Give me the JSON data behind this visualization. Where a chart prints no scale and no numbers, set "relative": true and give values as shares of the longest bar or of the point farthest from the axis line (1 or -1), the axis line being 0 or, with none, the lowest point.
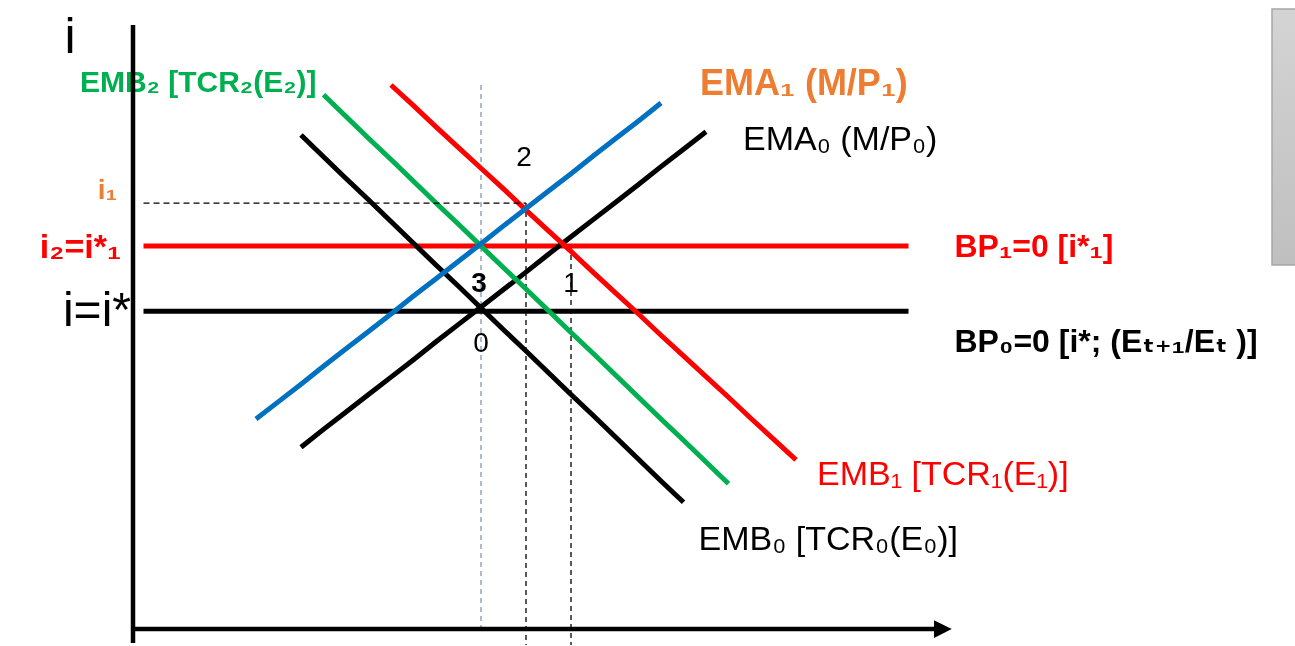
{
  "chart_data": {
    "type": "line",
    "relative": true,
    "ylabel": "i",
    "categories": [
      null,
      null,
      null,
      null,
      null,
      null,
      null,
      null,
      null,
      null,
      null,
      null,
      null,
      null,
      null,
      null,
      null,
      null,
      null,
      null,
      null,
      null,
      null,
      null,
      null,
      null,
      null,
      null,
      null,
      null,
      null,
      null,
      null,
      null,
      null
    ],
    "series": [
      {
        "name": "BP₀=0 [i*; (Eₜ₊₁/Eₜ )]",
        "color": "#000000",
        "values": [
          0.584,
          0.584,
          0.584,
          0.584,
          0.584,
          0.584,
          0.584,
          0.584,
          0.584,
          0.584,
          0.584,
          0.584,
          0.584,
          0.584,
          0.584,
          0.584,
          0.584,
          0.584,
          0.584,
          0.584,
          0.584,
          0.584,
          0.584,
          0.584,
          0.584,
          0.584,
          0.584,
          0.584,
          0.584,
          0.584,
          0.584,
          0.584,
          0.584,
          0.584,
          0.584
        ]
      },
      {
        "name": "BP₁=0 [i*₁]",
        "color": "#ff0000",
        "values": [
          0.704,
          0.704,
          0.704,
          0.704,
          0.704,
          0.704,
          0.704,
          0.704,
          0.704,
          0.704,
          0.704,
          0.704,
          0.704,
          0.704,
          0.704,
          0.704,
          0.704,
          0.704,
          0.704,
          0.704,
          0.704,
          0.704,
          0.704,
          0.704,
          0.704,
          0.704,
          0.704,
          0.704,
          0.704,
          0.704,
          0.704,
          0.704,
          0.704,
          0.704,
          0.704
        ]
      },
      {
        "name": "EMB₀ [TCR₀(E₀)]",
        "color": "#000000",
        "values": [
          null,
          null,
          null,
          null,
          null,
          null,
          null,
          0.908,
          0.868,
          0.828,
          0.789,
          0.749,
          0.709,
          0.669,
          0.63,
          0.59,
          0.55,
          0.511,
          0.471,
          0.431,
          0.392,
          0.352,
          0.312,
          0.272,
          0.233,
          null,
          null,
          null,
          null,
          null,
          null,
          null,
          null,
          null,
          null
        ]
      },
      {
        "name": "EMA₀ (M/P₀)",
        "color": "#000000",
        "values": [
          null,
          null,
          null,
          null,
          null,
          null,
          null,
          0.334,
          0.367,
          0.399,
          0.431,
          0.463,
          0.495,
          0.528,
          0.56,
          0.592,
          0.624,
          0.656,
          0.689,
          0.721,
          0.753,
          0.785,
          0.817,
          0.85,
          0.882,
          0.914,
          null,
          null,
          null,
          null,
          null,
          null,
          null,
          null,
          null
        ]
      },
      {
        "name": "EMB₂ [TCR₂(E₂)]",
        "color": "#00b050",
        "values": [
          null,
          null,
          null,
          null,
          null,
          null,
          null,
          null,
          0.982,
          0.942,
          0.902,
          0.863,
          0.823,
          0.783,
          0.744,
          0.704,
          0.664,
          0.625,
          0.585,
          0.545,
          0.506,
          0.466,
          0.426,
          0.386,
          0.347,
          0.307,
          0.267,
          null,
          null,
          null,
          null,
          null,
          null,
          null,
          null
        ]
      },
      {
        "name": "EMB₁ [TCR₁(E₁)]",
        "color": "#ff0000",
        "values": [
          null,
          null,
          null,
          null,
          null,
          null,
          null,
          null,
          null,
          null,
          null,
          1,
          0.962,
          0.923,
          0.885,
          0.847,
          0.809,
          0.77,
          0.732,
          0.694,
          0.655,
          0.617,
          0.579,
          0.54,
          0.502,
          0.464,
          0.426,
          0.387,
          0.349,
          0.311,
          null,
          null,
          null,
          null,
          null
        ]
      },
      {
        "name": "EMA₁ (M/P₁)",
        "color": "#0070c0",
        "values": [
          null,
          null,
          null,
          null,
          null,
          0.386,
          0.418,
          0.45,
          0.483,
          0.515,
          0.547,
          0.579,
          0.612,
          0.644,
          0.676,
          0.708,
          0.741,
          0.773,
          0.805,
          0.837,
          0.87,
          0.902,
          0.934,
          0.967,
          null,
          null,
          null,
          null,
          null,
          null,
          null,
          null,
          null,
          null,
          null
        ]
      },
      {
        "color": "#000000",
        "line_style": "dashed",
        "values": [
          0.783,
          0.783,
          0.783,
          0.783,
          0.783,
          0.783,
          0.783,
          0.783,
          0.783,
          0.783,
          0.783,
          0.783,
          0.783,
          0.783,
          0.783,
          0.783,
          0.783,
          0.783,
          null,
          null,
          null,
          null,
          null,
          null,
          null,
          null,
          null,
          null,
          null,
          null,
          null,
          null,
          null,
          null,
          null
        ]
      }
    ],
    "annotations": [
      "i₁",
      "i₂=i*₁",
      "i=i*",
      {
        "text": "0",
        "y": 0.592
      },
      {
        "text": "1",
        "y": 0.704
      },
      "2",
      {
        "text": "3",
        "y": 0.704
      }
    ]
  }
}
